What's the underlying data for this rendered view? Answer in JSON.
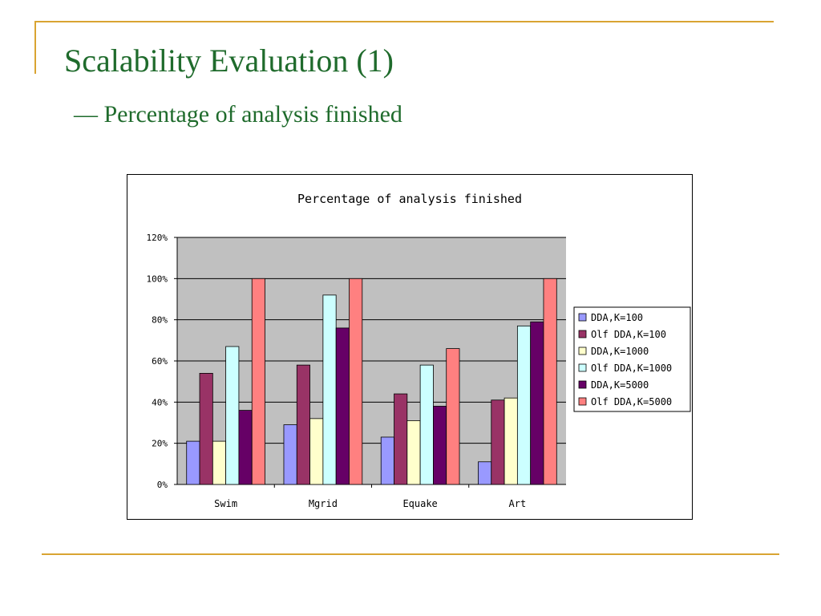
{
  "slide": {
    "title": "Scalability Evaluation (1)",
    "subtitle": "— Percentage of analysis finished"
  },
  "colors": {
    "accent_gold": "#d9a432",
    "title_green": "#1f6b2c",
    "plot_background": "#c0c0c0"
  },
  "chart_data": {
    "type": "bar",
    "title": "Percentage of analysis finished",
    "xlabel": "",
    "ylabel": "",
    "categories": [
      "Swim",
      "Mgrid",
      "Equake",
      "Art"
    ],
    "yticks": [
      "0%",
      "20%",
      "40%",
      "60%",
      "80%",
      "100%",
      "120%"
    ],
    "ylim": [
      0,
      120
    ],
    "grid": true,
    "legend_position": "right",
    "series": [
      {
        "name": "DDA,K=100",
        "color": "#9999ff",
        "values": [
          21,
          29,
          23,
          11
        ]
      },
      {
        "name": "Olf DDA,K=100",
        "color": "#993366",
        "values": [
          54,
          58,
          44,
          41
        ]
      },
      {
        "name": "DDA,K=1000",
        "color": "#ffffcc",
        "values": [
          21,
          32,
          31,
          42
        ]
      },
      {
        "name": "Olf DDA,K=1000",
        "color": "#ccffff",
        "values": [
          67,
          92,
          58,
          77
        ]
      },
      {
        "name": "DDA,K=5000",
        "color": "#660066",
        "values": [
          36,
          76,
          38,
          79
        ]
      },
      {
        "name": "Olf DDA,K=5000",
        "color": "#ff8080",
        "values": [
          100,
          100,
          66,
          100
        ]
      }
    ]
  }
}
